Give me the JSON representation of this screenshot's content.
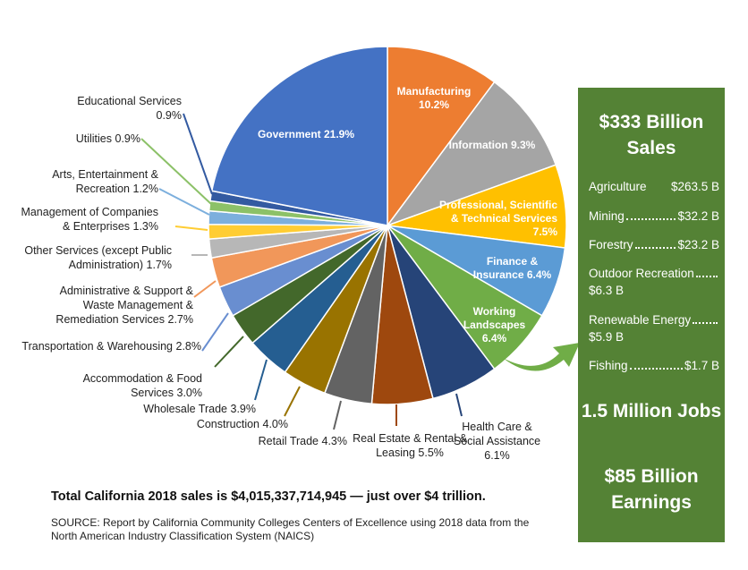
{
  "chart_data": {
    "type": "pie",
    "categories": [
      "Manufacturing",
      "Information",
      "Professional, Scientific & Technical Services",
      "Finance & Insurance",
      "Working Landscapes",
      "Health Care & Social Assistance",
      "Real Estate & Rental & Leasing",
      "Retail Trade",
      "Construction",
      "Wholesale Trade",
      "Accommodation & Food Services",
      "Transportation & Warehousing",
      "Administrative & Support & Waste Management & Remediation Services",
      "Other Services (except Public Administration)",
      "Management of Companies & Enterprises",
      "Arts, Entertainment & Recreation",
      "Utilities",
      "Educational Services",
      "Government"
    ],
    "values": [
      10.2,
      9.3,
      7.5,
      6.4,
      6.4,
      6.1,
      5.5,
      4.3,
      4.0,
      3.9,
      3.0,
      2.8,
      2.7,
      1.7,
      1.3,
      1.2,
      0.9,
      0.9,
      21.9
    ],
    "value_labels": [
      "10.2%",
      "9.3%",
      "7.5%",
      "6.4%",
      "6.4%",
      "6.1%",
      "5.5%",
      "4.3%",
      "4.0%",
      "3.9%",
      "3.0%",
      "2.8%",
      "2.7%",
      "1.7%",
      "1.3%",
      "1.2%",
      "0.9%",
      "0.9%",
      "21.9%"
    ],
    "colors": [
      "#ED7D31",
      "#A5A5A5",
      "#FFC000",
      "#5B9BD5",
      "#70AD47",
      "#264478",
      "#9E480E",
      "#636363",
      "#997300",
      "#255E91",
      "#43682B",
      "#698ED0",
      "#F1975A",
      "#B7B7B7",
      "#FFCD33",
      "#7CAFDD",
      "#8CC168",
      "#335AA1",
      "#4472C4"
    ]
  },
  "panel": {
    "title": "$333 Billion Sales",
    "items": [
      {
        "name": "Agriculture",
        "value": "$263.5 B"
      },
      {
        "name": "Mining",
        "value": "$32.2 B"
      },
      {
        "name": "Forestry",
        "value": "$23.2 B"
      },
      {
        "name": "Outdoor Recreation",
        "value": "$6.3 B"
      },
      {
        "name": "Renewable Energy",
        "value": "$5.9 B"
      },
      {
        "name": "Fishing",
        "value": "$1.7 B"
      }
    ],
    "jobs": "1.5 Million Jobs",
    "earnings": "$85 Billion Earnings"
  },
  "total_note": "Total California 2018 sales is $4,015,337,714,945 — just over $4 trillion.",
  "source": "SOURCE: Report by California Community Colleges Centers of Excellence using 2018 data from the North American Industry Classification System (NAICS)"
}
